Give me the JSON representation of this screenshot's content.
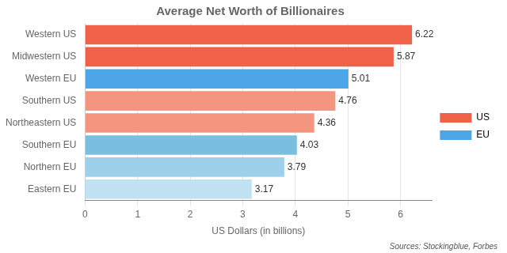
{
  "chart_data": {
    "type": "bar",
    "orientation": "horizontal",
    "stacked": true,
    "title": "Average Net Worth of Billionaires",
    "xlabel": "US Dollars (in billions)",
    "annotation": "Sources: Stockingblue, Forbes",
    "categories": [
      "Western US",
      "Midwestern US",
      "Western EU",
      "Southern US",
      "Northeastern US",
      "Southern EU",
      "Northern EU",
      "Eastern EU"
    ],
    "series": [
      {
        "name": "US",
        "color": "#f0614a",
        "colors": [
          "#f0614a",
          "#f0614a",
          null,
          "#f4967f",
          "#f4967f",
          null,
          null,
          null
        ],
        "values": [
          6.22,
          5.87,
          null,
          4.76,
          4.36,
          null,
          null,
          null
        ]
      },
      {
        "name": "EU",
        "color": "#4da6e8",
        "colors": [
          null,
          null,
          "#4da6e8",
          null,
          null,
          "#7bbfe0",
          "#9dd0ea",
          "#c0e2f2"
        ],
        "values": [
          null,
          null,
          5.01,
          null,
          null,
          4.03,
          3.79,
          3.17
        ]
      }
    ],
    "xlim": [
      0,
      6.6
    ],
    "xticks": [
      0,
      1,
      2,
      3,
      4,
      5,
      6
    ],
    "grid": true,
    "legend": "right",
    "data_labels": true
  }
}
